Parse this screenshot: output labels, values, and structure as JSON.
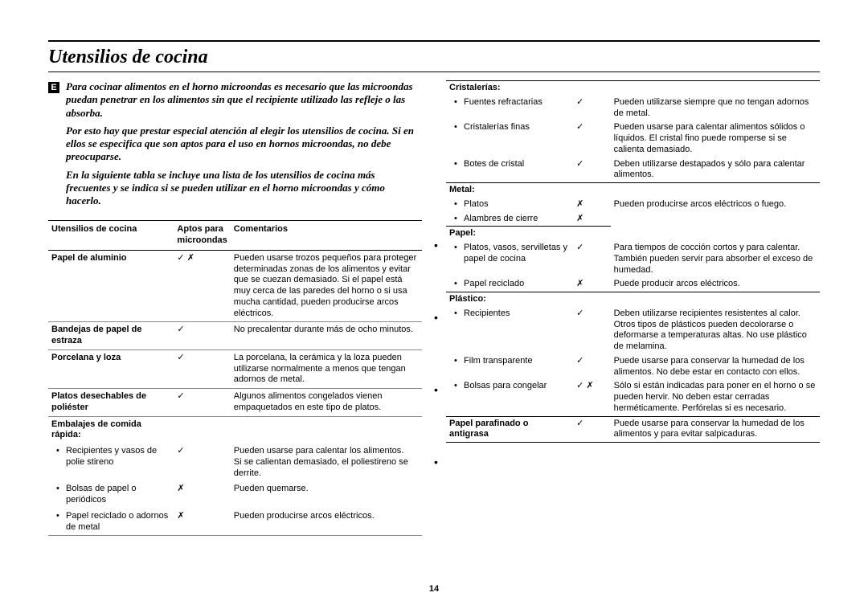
{
  "page": {
    "title": "Utensilios de cocina",
    "lang_badge": "E",
    "page_number": "14"
  },
  "intro": {
    "p1": "Para cocinar alimentos en el horno microondas es necesario que las microondas puedan penetrar en los alimentos sin que el recipiente utilizado las refleje o las absorba.",
    "p2": "Por esto hay que prestar especial atención al elegir los utensilios de cocina. Si en ellos se especifica que son aptos para el uso en hornos microondas, no debe preocuparse.",
    "p3": "En la siguiente tabla se incluye una lista de los utensilios de cocina más frecuentes y se indica si se pueden utilizar en el horno microondas y cómo hacerlo."
  },
  "table_head": {
    "c1": "Utensilios de cocina",
    "c2": "Aptos para microondas",
    "c3": "Comentarios"
  },
  "left_rows": [
    {
      "name": "Papel de aluminio",
      "apt": "✓ ✗",
      "comment": "Pueden usarse trozos pequeños para proteger determinadas zonas de los alimentos y evitar que se cuezan demasiado. Si el papel está muy cerca de las paredes del horno o si usa mucha cantidad, pueden producirse arcos eléctricos."
    },
    {
      "name": "Bandejas de papel de estraza",
      "apt": "✓",
      "comment": "No precalentar durante más de ocho minutos."
    },
    {
      "name": "Porcelana y loza",
      "apt": "✓",
      "comment": "La porcelana, la cerámica y la loza pueden utilizarse normalmente a menos que tengan adornos de metal."
    },
    {
      "name": "Platos desechables de poliéster",
      "apt": "✓",
      "comment": "Algunos alimentos congelados vienen empaquetados en este tipo de platos."
    }
  ],
  "left_section": {
    "header": "Embalajes de comida rápida:",
    "items": [
      {
        "name": "Recipientes y vasos de polie stireno",
        "apt": "✓",
        "comment": "Pueden usarse para calentar los alimentos.\nSi se calientan demasiado, el poliestireno se derrite."
      },
      {
        "name": "Bolsas de papel o periódicos",
        "apt": "✗",
        "comment": "Pueden quemarse."
      },
      {
        "name": "Papel reciclado o adornos de metal",
        "apt": "✗",
        "comment": "Pueden producirse arcos eléctricos."
      }
    ]
  },
  "right_sections": [
    {
      "header": "Cristalerías:",
      "items": [
        {
          "name": "Fuentes refractarias",
          "apt": "✓",
          "comment": "Pueden utilizarse siempre que no tengan adornos de metal."
        },
        {
          "name": "Cristalerías finas",
          "apt": "✓",
          "comment": "Pueden usarse para calentar alimentos sólidos o líquidos. El cristal fino puede romperse si se calienta demasiado."
        },
        {
          "name": "Botes de cristal",
          "apt": "✓",
          "comment": "Deben utilizarse destapados y sólo para calentar alimentos."
        }
      ]
    },
    {
      "header": "Metal:",
      "items": [
        {
          "name": "Platos",
          "apt": "✗",
          "comment": "Pueden producirse arcos eléctricos o fuego."
        },
        {
          "name": "Alambres de cierre",
          "apt": "✗",
          "comment": ""
        }
      ]
    },
    {
      "header": "Papel:",
      "items": [
        {
          "name": "Platos, vasos, servilletas y papel de cocina",
          "apt": "✓",
          "comment": "Para tiempos de cocción cortos y para calentar. También pueden servir para absorber el exceso de humedad."
        },
        {
          "name": "Papel reciclado",
          "apt": "✗",
          "comment": "Puede producir arcos eléctricos."
        }
      ]
    },
    {
      "header": "Plástico:",
      "items": [
        {
          "name": "Recipientes",
          "apt": "✓",
          "comment": "Deben utilizarse recipientes resistentes al calor. Otros tipos de plásticos pueden decolorarse o deformarse a temperaturas altas. No use plástico de melamina."
        },
        {
          "name": "Film transparente",
          "apt": "✓",
          "comment": "Puede usarse para conservar la humedad de los alimentos. No debe estar en contacto con ellos."
        },
        {
          "name": "Bolsas para congelar",
          "apt": "✓ ✗",
          "comment": "Sólo si están indicadas para poner en el horno o se pueden hervir. No deben estar cerradas herméticamente. Perfórelas si es necesario."
        }
      ]
    }
  ],
  "right_last": {
    "name": "Papel parafinado o antigrasa",
    "apt": "✓",
    "comment": "Puede usarse para conservar la humedad de los alimentos y para evitar salpicaduras."
  }
}
